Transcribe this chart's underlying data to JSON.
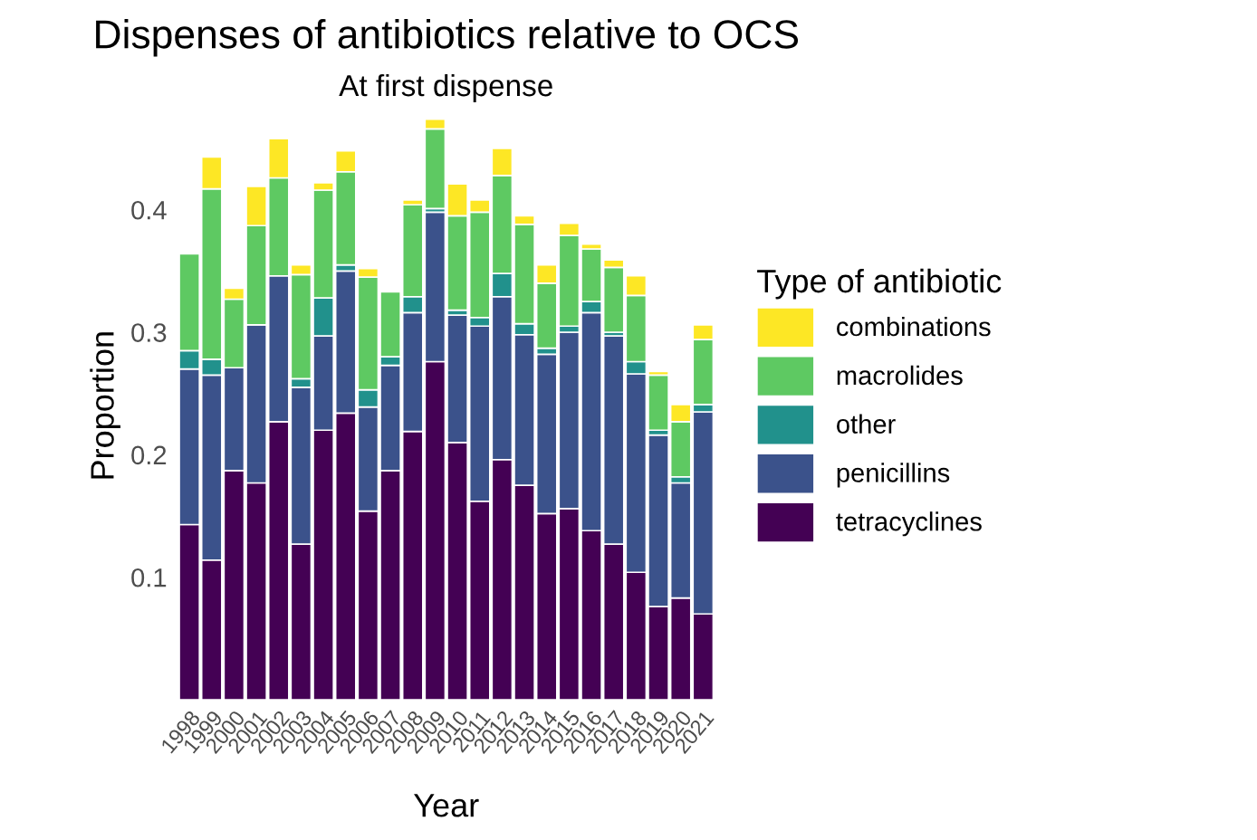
{
  "chart_data": {
    "type": "bar",
    "stacked": true,
    "title": "Dispenses of antibiotics relative to OCS",
    "subtitle": "At first dispense",
    "xlabel": "Year",
    "ylabel": "Proportion",
    "legend_title": "Type of antibiotic",
    "legend": "right",
    "grid": false,
    "categories": [
      "1998",
      "1999",
      "2000",
      "2001",
      "2002",
      "2003",
      "2004",
      "2005",
      "2006",
      "2007",
      "2008",
      "2009",
      "2010",
      "2011",
      "2012",
      "2013",
      "2014",
      "2015",
      "2016",
      "2017",
      "2018",
      "2019",
      "2020",
      "2021"
    ],
    "ylim": [
      0,
      0.48
    ],
    "yticks": [
      0.1,
      0.2,
      0.3,
      0.4
    ],
    "series": [
      {
        "name": "tetracyclines",
        "color": "#440154",
        "values": [
          0.143,
          0.114,
          0.187,
          0.177,
          0.227,
          0.127,
          0.22,
          0.234,
          0.154,
          0.187,
          0.219,
          0.276,
          0.21,
          0.162,
          0.196,
          0.175,
          0.152,
          0.156,
          0.138,
          0.127,
          0.104,
          0.076,
          0.083,
          0.07
        ]
      },
      {
        "name": "penicillins",
        "color": "#3b528b",
        "values": [
          0.127,
          0.151,
          0.084,
          0.129,
          0.119,
          0.128,
          0.077,
          0.116,
          0.085,
          0.086,
          0.097,
          0.122,
          0.104,
          0.143,
          0.133,
          0.123,
          0.13,
          0.144,
          0.178,
          0.17,
          0.162,
          0.14,
          0.094,
          0.165
        ]
      },
      {
        "name": "other",
        "color": "#21918c",
        "values": [
          0.015,
          0.013,
          0,
          0,
          0,
          0.007,
          0.031,
          0.005,
          0.014,
          0.007,
          0.013,
          0.003,
          0.004,
          0.007,
          0.019,
          0.009,
          0.005,
          0.005,
          0.009,
          0.003,
          0.01,
          0.004,
          0.005,
          0.006
        ]
      },
      {
        "name": "macrolides",
        "color": "#5ec962",
        "values": [
          0.079,
          0.139,
          0.056,
          0.081,
          0.08,
          0.085,
          0.088,
          0.076,
          0.092,
          0.053,
          0.075,
          0.065,
          0.077,
          0.086,
          0.08,
          0.081,
          0.053,
          0.074,
          0.043,
          0.053,
          0.054,
          0.045,
          0.045,
          0.053
        ]
      },
      {
        "name": "combinations",
        "color": "#fde725",
        "values": [
          0,
          0.026,
          0.009,
          0.032,
          0.032,
          0.008,
          0.006,
          0.017,
          0.007,
          0,
          0.004,
          0.008,
          0.026,
          0.01,
          0.022,
          0.007,
          0.015,
          0.01,
          0.004,
          0.006,
          0.016,
          0.003,
          0.014,
          0.012
        ]
      }
    ]
  }
}
